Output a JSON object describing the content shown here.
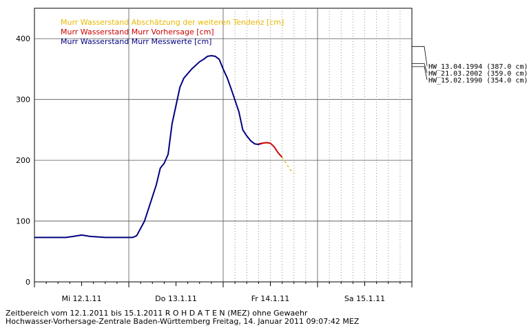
{
  "chart_data": {
    "type": "line",
    "title": "",
    "xlabel": "",
    "ylabel": "",
    "ylim": [
      0,
      450
    ],
    "y_ticks": [
      0,
      100,
      200,
      300,
      400
    ],
    "x_range_hours": [
      0,
      96
    ],
    "x_ticks": [
      {
        "label": "Mi 12.1.11",
        "hour": 12
      },
      {
        "label": "Do 13.1.11",
        "hour": 36
      },
      {
        "label": "Fr 14.1.11",
        "hour": 60
      },
      {
        "label": "Sa 15.1.11",
        "hour": 84
      }
    ],
    "series": [
      {
        "name": "Murr Wasserstand Murr Messwerte [cm]",
        "color": "#000080",
        "style": "solid",
        "points": [
          [
            0,
            73
          ],
          [
            8,
            73
          ],
          [
            10,
            75
          ],
          [
            12,
            77
          ],
          [
            14,
            75
          ],
          [
            18,
            73
          ],
          [
            24,
            73
          ],
          [
            25,
            73
          ],
          [
            26,
            76
          ],
          [
            28,
            100
          ],
          [
            30,
            140
          ],
          [
            31,
            160
          ],
          [
            32,
            187
          ],
          [
            33,
            195
          ],
          [
            34,
            210
          ],
          [
            35,
            260
          ],
          [
            36,
            290
          ],
          [
            37,
            320
          ],
          [
            38,
            335
          ],
          [
            40,
            350
          ],
          [
            42,
            362
          ],
          [
            43,
            366
          ],
          [
            44,
            371
          ],
          [
            45,
            372
          ],
          [
            46,
            371
          ],
          [
            47,
            366
          ],
          [
            48,
            350
          ],
          [
            49,
            336
          ],
          [
            50,
            318
          ],
          [
            52,
            280
          ],
          [
            53,
            250
          ],
          [
            54,
            240
          ],
          [
            55,
            232
          ],
          [
            56,
            227
          ],
          [
            57,
            226
          ],
          [
            58,
            228
          ]
        ]
      },
      {
        "name": "Murr Wasserstand Murr Vorhersage [cm]",
        "color": "#cc0000",
        "style": "solid",
        "points": [
          [
            57,
            227
          ],
          [
            58,
            228
          ],
          [
            59,
            229
          ],
          [
            60,
            228
          ],
          [
            61,
            222
          ],
          [
            62,
            212
          ],
          [
            63,
            205
          ]
        ]
      },
      {
        "name": "Murr Wasserstand Abschätzung der weiteren Tendenz [cm]",
        "color": "#e8b800",
        "style": "dashed",
        "points": [
          [
            63,
            205
          ],
          [
            64,
            195
          ],
          [
            65,
            185
          ],
          [
            66,
            178
          ]
        ]
      }
    ],
    "annotations": [
      {
        "label": "HW_13.04.1994 (387.0 cm)",
        "value": 387
      },
      {
        "label": "HW_21.03.2002 (359.0 cm)",
        "value": 359
      },
      {
        "label": "HW_15.02.1990 (354.0 cm)",
        "value": 354
      }
    ],
    "legend_position": "top-left",
    "grid": true
  },
  "footer": {
    "line1": "Zeitbereich vom 12.1.2011 bis 15.1.2011      R O H D A T E N (MEZ) ohne Gewaehr",
    "line2": "Hochwasser-Vorhersage-Zentrale Baden-Württemberg Freitag, 14. Januar 2011 09:07:42 MEZ"
  }
}
